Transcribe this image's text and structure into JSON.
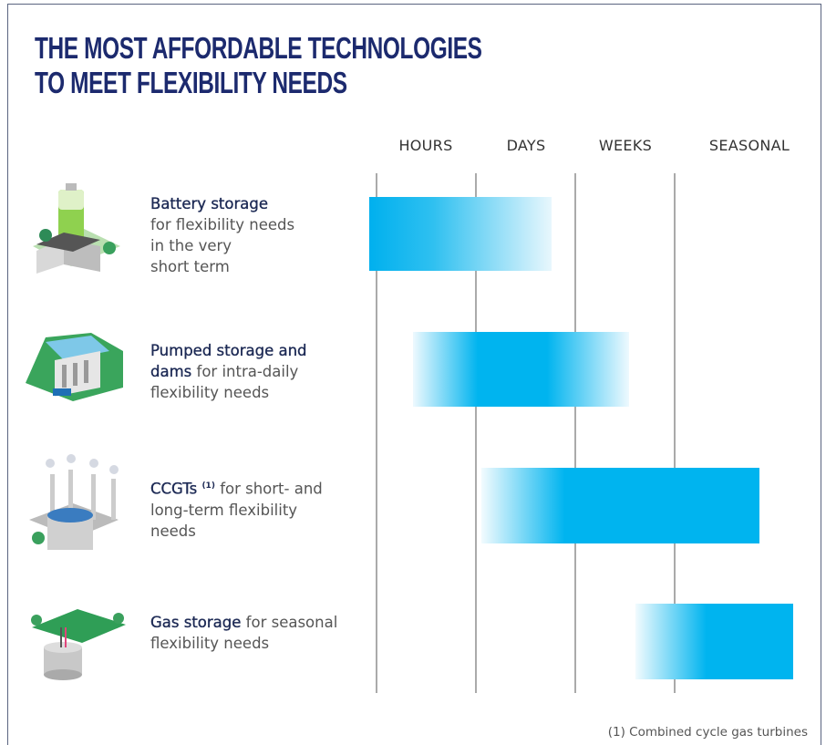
{
  "header": {
    "title_lines": [
      "THE MOST AFFORDABLE TECHNOLOGIES",
      "TO MEET FLEXIBILITY NEEDS"
    ]
  },
  "columns": [
    "HOURS",
    "DAYS",
    "WEEKS",
    "SEASONAL"
  ],
  "rows": [
    {
      "title": "Battery storage",
      "description": "for flexibility needs\nin the very\nshort term"
    },
    {
      "title": "Pumped storage and\ndams",
      "description": "for intra-daily\nflexibility needs"
    },
    {
      "title": "CCGTs",
      "note": "(1)",
      "description": "for short- and\nlong-term flexibility\nneeds"
    },
    {
      "title": "Gas storage",
      "description": "for seasonal\nflexibility needs"
    }
  ],
  "footnote": "(1) Combined cycle gas turbines"
}
